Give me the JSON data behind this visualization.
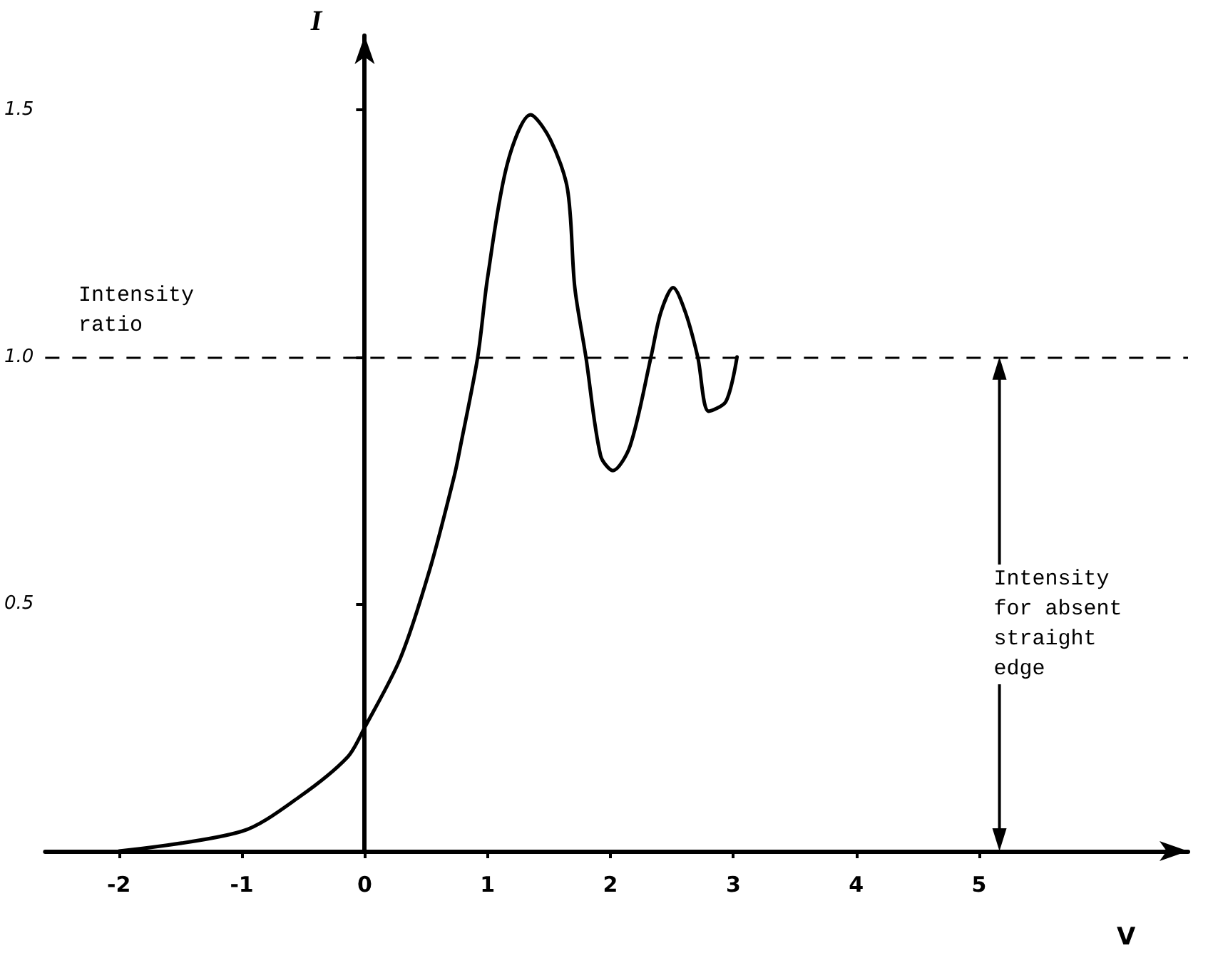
{
  "chart_data": {
    "type": "line",
    "xlabel": "V",
    "ylabel": "I",
    "x": [
      -2,
      -1,
      -0.53,
      -0.14,
      0,
      0.29,
      0.53,
      0.73,
      0.78,
      0.92,
      1.0,
      1.16,
      1.35,
      1.51,
      1.65,
      1.71,
      1.8,
      1.92,
      2.02,
      2.16,
      2.33,
      2.41,
      2.51,
      2.61,
      2.71,
      2.8,
      2.94,
      3.03
    ],
    "series": [
      {
        "color": "#000000",
        "values": [
          0,
          0.04,
          0.11,
          0.19,
          0.25,
          0.39,
          0.57,
          0.76,
          0.82,
          1.0,
          1.16,
          1.39,
          1.49,
          1.44,
          1.34,
          1.14,
          1.0,
          0.8,
          0.77,
          0.82,
          1.0,
          1.09,
          1.14,
          1.09,
          1.0,
          0.89,
          0.91,
          1.0
        ]
      }
    ],
    "xlim": [
      -2.6,
      6.7
    ],
    "ylim": [
      0,
      1.65
    ],
    "xticks": [
      -2,
      -1,
      0,
      1,
      2,
      3,
      4,
      5
    ],
    "yticks": [
      0.5,
      {
        "value": 1,
        "label": "1.0"
      },
      1.5
    ],
    "ref_lines": [
      {
        "axis": "y",
        "value": 1,
        "line_style": "dashed",
        "color": "#000000"
      }
    ],
    "annotations": [
      "Intensity ratio",
      "Intensity for absent straight edge"
    ],
    "marker": "none",
    "line_style": "solid",
    "grid": false
  }
}
